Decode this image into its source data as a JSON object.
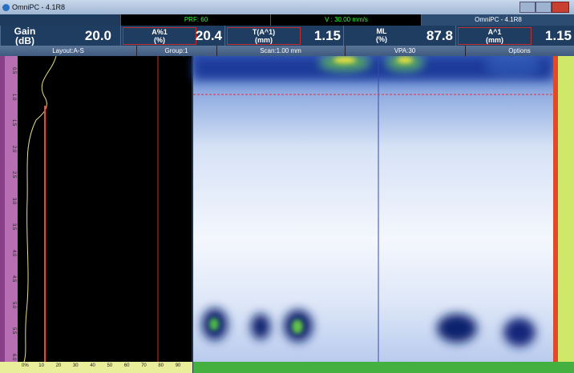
{
  "window": {
    "title": "OmniPC - 4.1R8"
  },
  "status": {
    "prf": "PRF: 60",
    "velocity": "V : 30.00 mm/s",
    "app": "OmniPC - 4.1R8"
  },
  "readings": [
    {
      "label": "Gain",
      "unit": "(dB)",
      "value": "20.0"
    },
    {
      "label": "A%1",
      "unit": "(%)",
      "value": "20.4"
    },
    {
      "label": "T(A^1)",
      "unit": "(mm)",
      "value": "1.15"
    },
    {
      "label": "ML",
      "unit": "(%)",
      "value": "87.8"
    },
    {
      "label": "A^1",
      "unit": "(mm)",
      "value": "1.15"
    }
  ],
  "toolbar": [
    "Layout:A-S",
    "Group:1",
    "Scan:1.00 mm",
    "VPA:30",
    "Options"
  ],
  "depth_ruler": [
    "0.5",
    "1.0",
    "1.5",
    "2.0",
    "2.5",
    "3.0",
    "3.5",
    "4.0",
    "4.5",
    "5.0",
    "5.5",
    "6.0"
  ],
  "amplitude_ruler": [
    "0%",
    "10",
    "20",
    "30",
    "40",
    "50",
    "60",
    "70",
    "80",
    "90"
  ]
}
